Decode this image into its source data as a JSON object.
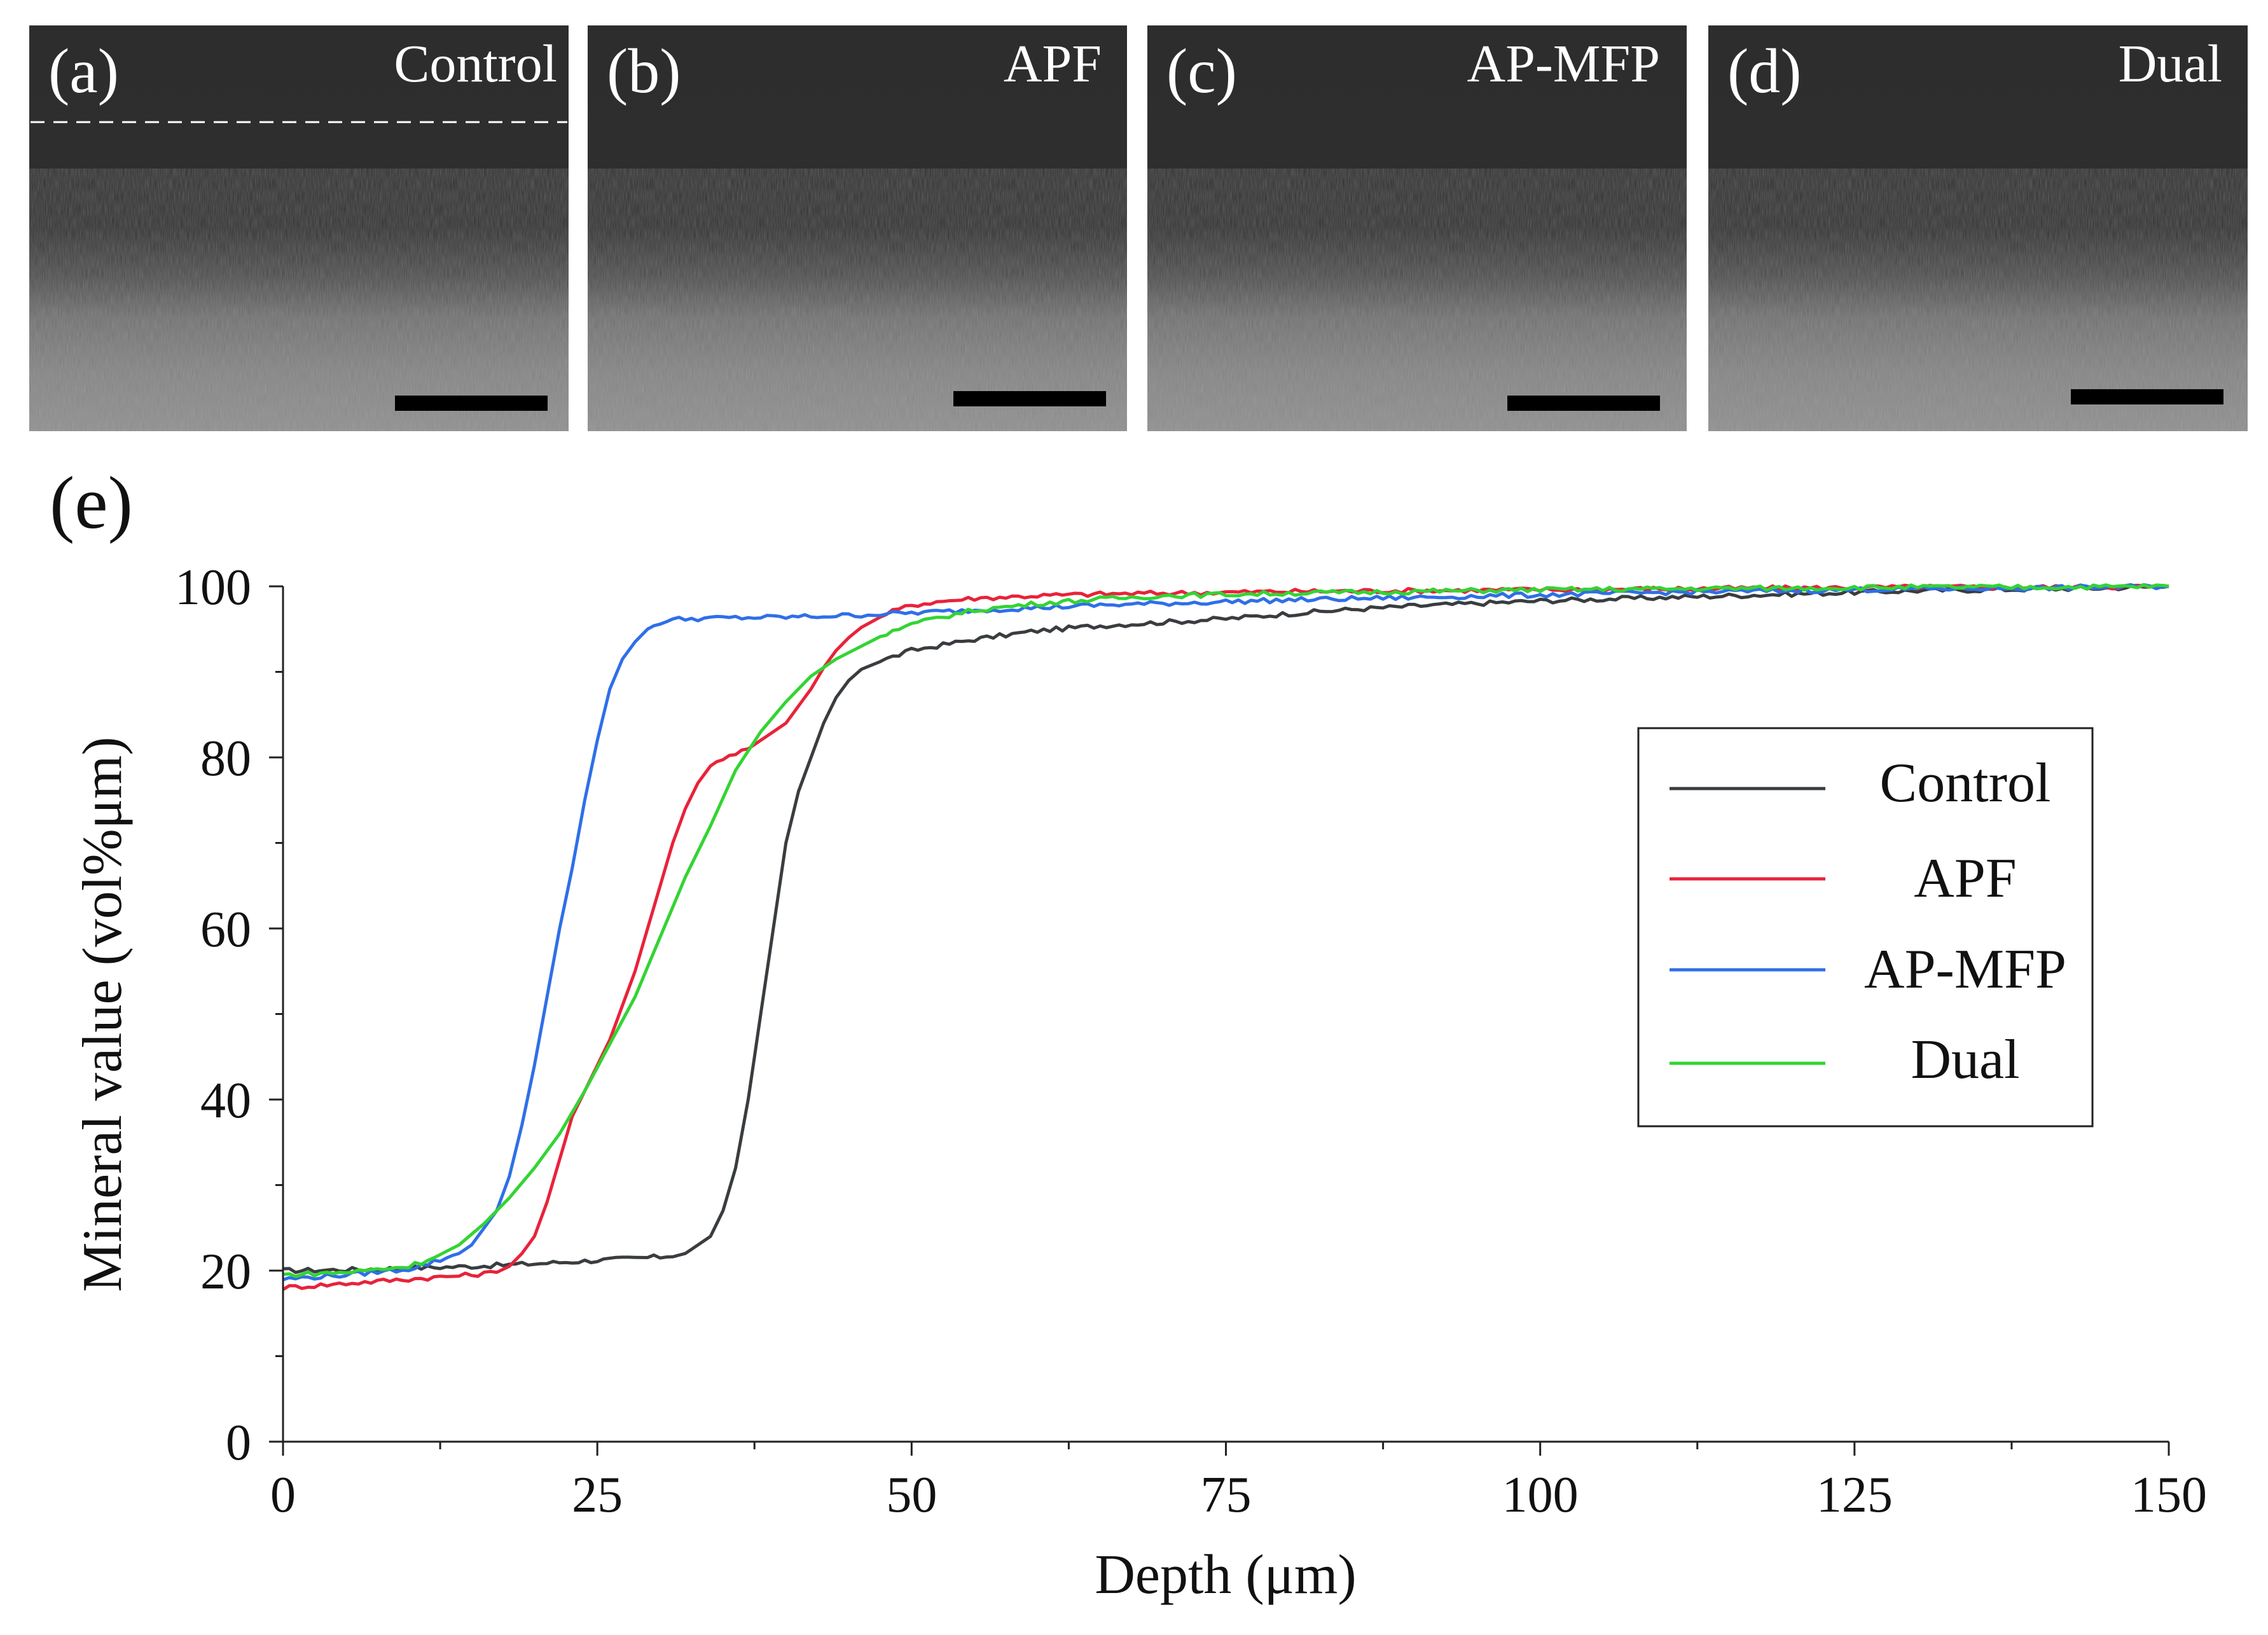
{
  "panels": [
    {
      "letter": "(a)",
      "label": "Control",
      "show_surface_line": true
    },
    {
      "letter": "(b)",
      "label": "APF",
      "show_surface_line": false
    },
    {
      "letter": "(c)",
      "label": "AP-MFP",
      "show_surface_line": false
    },
    {
      "letter": "(d)",
      "label": "Dual",
      "show_surface_line": false
    }
  ],
  "chart_panel_letter": "(e)",
  "chart_data": {
    "type": "line",
    "title": "",
    "xlabel": "Depth (μm)",
    "ylabel": "Mineral value (vol%μm)",
    "xlim": [
      0,
      150
    ],
    "ylim": [
      0,
      100
    ],
    "xticks": [
      0,
      25,
      50,
      75,
      100,
      125,
      150
    ],
    "yticks": [
      0,
      20,
      40,
      60,
      80,
      100
    ],
    "grid": false,
    "legend_position": "right",
    "series": [
      {
        "name": "Control",
        "color": "#3a3d40",
        "x": [
          0,
          5,
          10,
          15,
          20,
          25,
          30,
          32,
          34,
          35,
          36,
          37,
          38,
          39,
          40,
          41,
          42,
          43,
          44,
          45,
          46,
          48,
          50,
          55,
          60,
          65,
          70,
          75,
          80,
          85,
          90,
          95,
          100,
          105,
          110,
          115,
          120,
          125,
          130,
          135,
          140,
          145,
          150
        ],
        "y": [
          20,
          20.1,
          20.3,
          20.5,
          20.8,
          21.2,
          21.6,
          22,
          24,
          27,
          32,
          40,
          50,
          60,
          70,
          76,
          80,
          84,
          87,
          89,
          90.3,
          91.5,
          92.5,
          93.8,
          94.8,
          95.4,
          95.8,
          96.2,
          96.8,
          97.3,
          97.7,
          98,
          98.3,
          98.5,
          98.7,
          98.9,
          99.1,
          99.3,
          99.5,
          99.6,
          99.7,
          99.8,
          100
        ]
      },
      {
        "name": "APF",
        "color": "#e8233a",
        "x": [
          0,
          5,
          10,
          15,
          17,
          18,
          19,
          20,
          21,
          22,
          23,
          24,
          25,
          26,
          27,
          28,
          29,
          30,
          31,
          32,
          33,
          34,
          35,
          36,
          37,
          38,
          39,
          40,
          41,
          42,
          43,
          44,
          45,
          46,
          48,
          50,
          52,
          55,
          60,
          65,
          70,
          75,
          80,
          90,
          100,
          110,
          120,
          130,
          140,
          150
        ],
        "y": [
          18,
          18.5,
          19,
          19.5,
          19.8,
          20.5,
          22,
          24,
          28,
          33,
          38,
          41,
          44,
          47,
          51,
          55,
          60,
          65,
          70,
          74,
          77,
          79,
          80,
          80.5,
          81,
          82,
          83,
          84,
          86,
          88,
          90.5,
          92.5,
          94,
          95.2,
          96.8,
          97.8,
          98.2,
          98.6,
          98.9,
          99.1,
          99.2,
          99.3,
          99.4,
          99.5,
          99.6,
          99.7,
          99.8,
          99.9,
          99.9,
          100
        ]
      },
      {
        "name": "AP-MFP",
        "color": "#2f6fe8",
        "x": [
          0,
          5,
          10,
          12,
          14,
          15,
          16,
          17,
          18,
          19,
          20,
          21,
          22,
          23,
          24,
          25,
          26,
          27,
          28,
          29,
          30,
          31,
          32,
          35,
          40,
          45,
          50,
          55,
          60,
          65,
          70,
          75,
          80,
          90,
          100,
          110,
          120,
          130,
          140,
          150
        ],
        "y": [
          19,
          19.5,
          20.2,
          21,
          22,
          23,
          25,
          27,
          31,
          37,
          44,
          52,
          60,
          67,
          75,
          82,
          88,
          91.5,
          93.5,
          95,
          95.8,
          96.1,
          96.2,
          96.3,
          96.4,
          96.6,
          96.9,
          97.2,
          97.5,
          97.8,
          98,
          98.2,
          98.4,
          98.7,
          99,
          99.3,
          99.5,
          99.7,
          99.8,
          100
        ]
      },
      {
        "name": "Dual",
        "color": "#33d433",
        "x": [
          0,
          5,
          10,
          12,
          14,
          16,
          18,
          20,
          22,
          24,
          26,
          28,
          30,
          32,
          34,
          36,
          38,
          40,
          42,
          44,
          46,
          48,
          50,
          52,
          55,
          60,
          65,
          70,
          80,
          90,
          100,
          110,
          120,
          130,
          140,
          150
        ],
        "y": [
          19.5,
          19.8,
          20.5,
          21.5,
          23,
          25.5,
          28.5,
          32,
          36,
          41,
          46.5,
          52,
          59,
          66,
          72,
          78.5,
          83,
          86.5,
          89.5,
          91.5,
          93,
          94.5,
          95.5,
          96.3,
          97.2,
          98,
          98.5,
          98.9,
          99.2,
          99.4,
          99.6,
          99.7,
          99.8,
          99.9,
          99.9,
          100
        ]
      }
    ]
  }
}
